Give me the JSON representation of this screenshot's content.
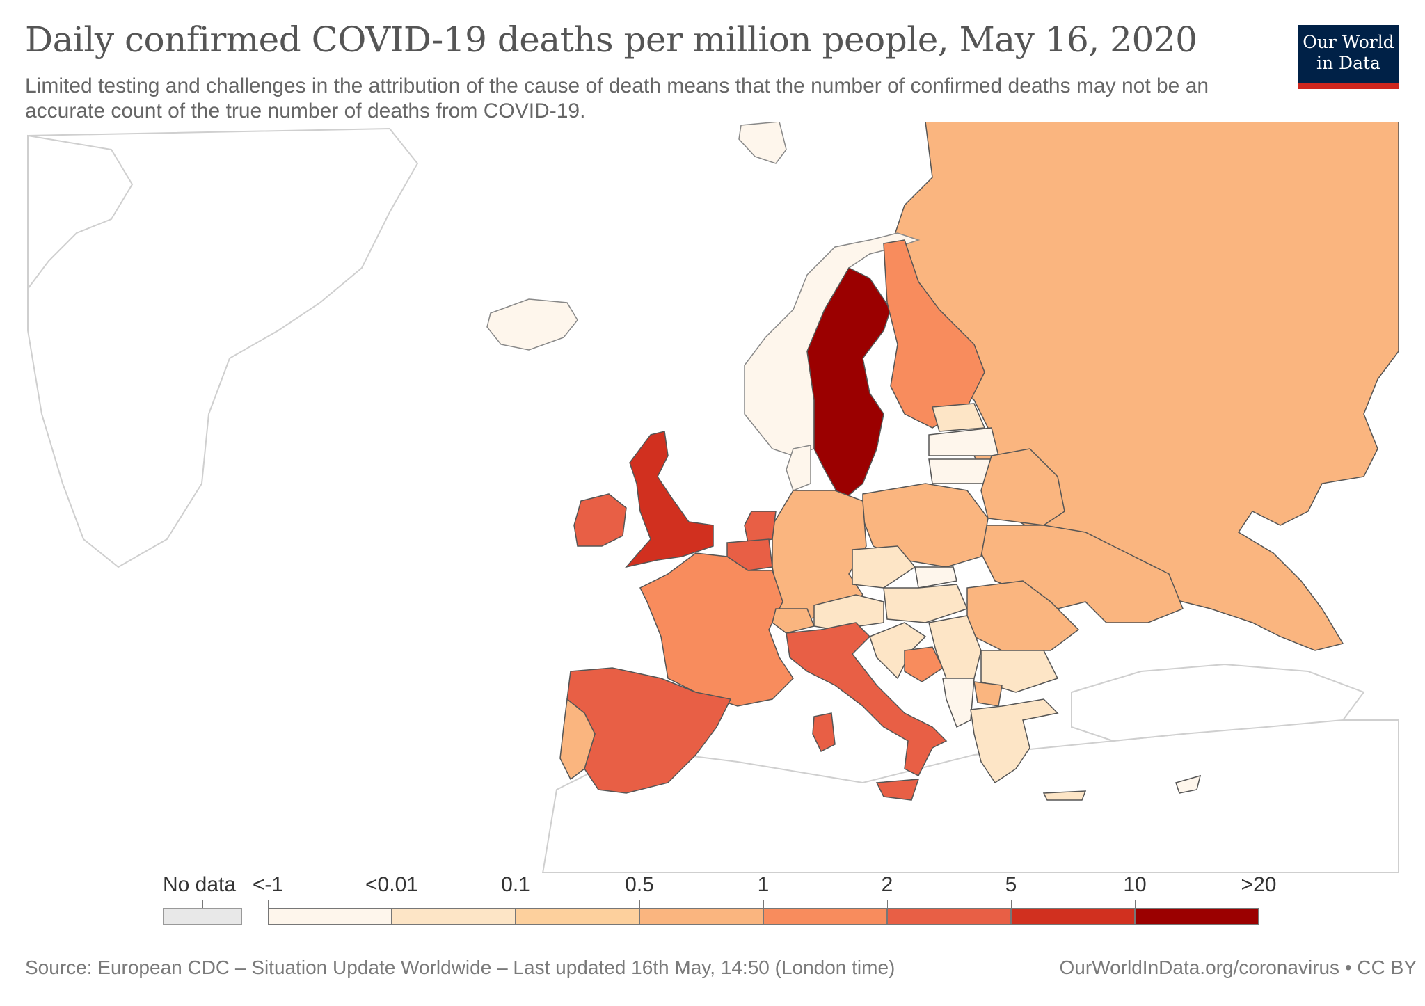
{
  "header": {
    "title": "Daily confirmed COVID-19 deaths per million people, May 16, 2020",
    "subtitle": "Limited testing and challenges in the attribution of the cause of death means that the number of confirmed deaths may not be an accurate count of the true number of deaths from COVID-19."
  },
  "logo": {
    "line1": "Our World",
    "line2": "in Data",
    "bg_color": "#002147",
    "accent_color": "#ce261e"
  },
  "legend": {
    "no_data_label": "No data",
    "no_data_color": "#e8e8e8",
    "labels": [
      "<-1",
      "<0.01",
      "0.1",
      "0.5",
      "1",
      "2",
      "5",
      "10",
      ">20"
    ],
    "colors": [
      "#fef6ec",
      "#fde5c6",
      "#fdd09d",
      "#fab57f",
      "#f88c5d",
      "#e85f45",
      "#d1301f",
      "#9b0000"
    ]
  },
  "map": {
    "colors": {
      "ocean": "#ffffff",
      "land_no_data": "#ffffff",
      "border": "#cfcfcf",
      "country_border": "#555555",
      "bin_lt_0_01": "#fef6ec",
      "bin_0_01_0_1": "#fde5c6",
      "bin_0_1_0_5": "#fdd09d",
      "bin_0_5_1": "#fab57f",
      "bin_1_2": "#f88c5d",
      "bin_2_5": "#e85f45",
      "bin_5_10": "#d1301f",
      "bin_gt_20": "#9b0000"
    }
  },
  "footer": {
    "source": "Source: European CDC – Situation Update Worldwide – Last updated 16th May, 14:50 (London time)",
    "site": "OurWorldInData.org/coronavirus • CC BY"
  }
}
